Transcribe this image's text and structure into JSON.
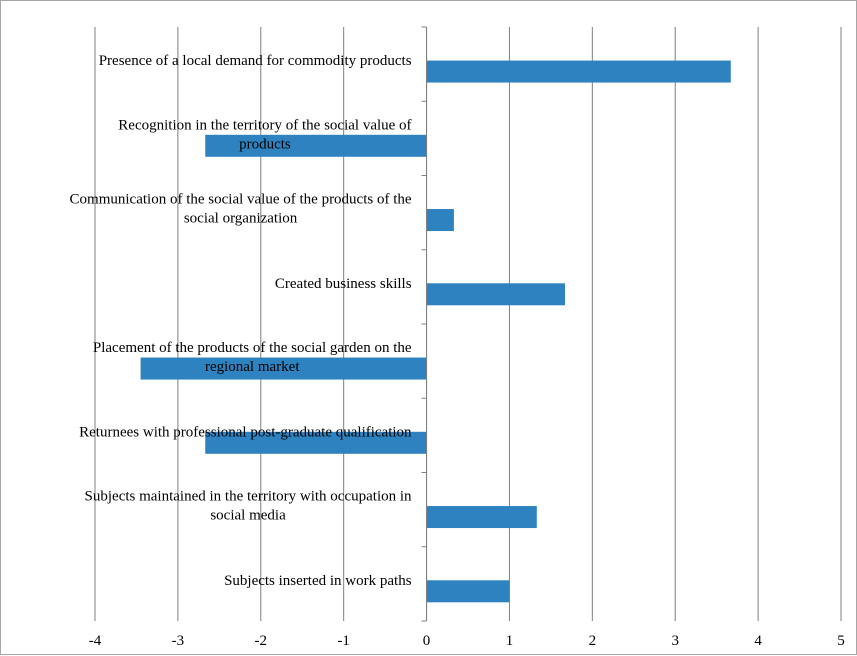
{
  "chart_data": {
    "type": "bar",
    "orientation": "horizontal",
    "categories": [
      "Presence of a local demand for commodity products",
      "Recognition in the territory of the social value of products",
      "Communication of the social value of the products of the social organization",
      "Created business skills",
      "Placement of the products of the social garden on the regional market",
      "Returnees with professional post-graduate qualification",
      "Subjects maintained in the territory with occupation in social media",
      "Subjects inserted in work paths"
    ],
    "category_label_lines": [
      [
        "Presence of a local demand for commodity products"
      ],
      [
        "Recognition in the territory of the social value of",
        "products"
      ],
      [
        "Communication of the social value of the products of the",
        "social organization"
      ],
      [
        "Created business skills"
      ],
      [
        "Placement of the products of the social garden on the",
        "regional market"
      ],
      [
        "Returnees with professional post-graduate qualification"
      ],
      [
        "Subjects maintained in the territory with occupation in",
        "social media"
      ],
      [
        "Subjects inserted in work paths"
      ]
    ],
    "values": [
      3.67,
      -2.67,
      0.33,
      1.67,
      -3.45,
      -2.67,
      1.33,
      1.0
    ],
    "xlim": [
      -4,
      5
    ],
    "x_ticks": [
      "-4",
      "-3",
      "-2",
      "-1",
      "0",
      "1",
      "2",
      "3",
      "4",
      "5"
    ],
    "title": "",
    "xlabel": "",
    "ylabel": "",
    "grid": "vertical",
    "legend": "none",
    "bar_color": "#2e82c0",
    "grid_color": "#7f7f7f"
  }
}
